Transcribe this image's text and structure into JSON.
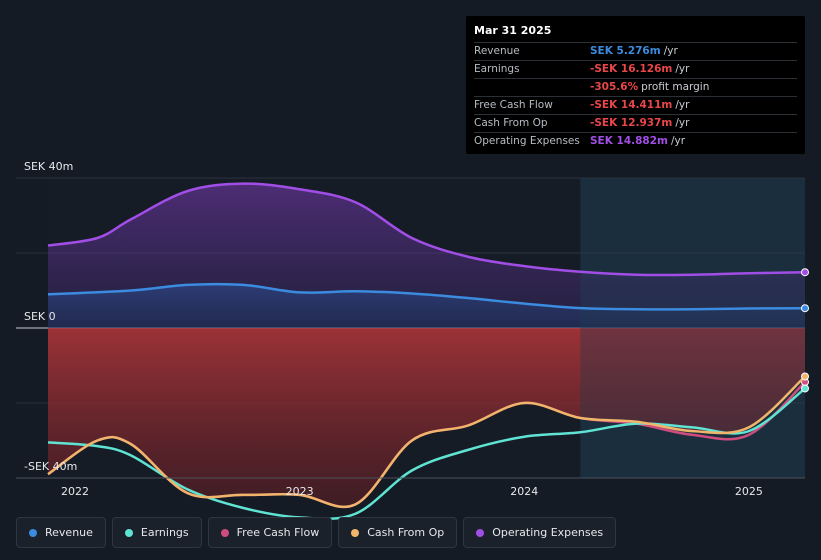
{
  "chart_data": {
    "type": "area",
    "x_ticks": [
      "2022",
      "2023",
      "2024",
      "2025"
    ],
    "y_ticks": [
      {
        "value": 40,
        "label": "SEK 40m"
      },
      {
        "value": 0,
        "label": "SEK 0"
      },
      {
        "value": -40,
        "label": "-SEK 40m"
      }
    ],
    "ylim": [
      -40,
      40
    ],
    "xlim": [
      2021.88,
      2025.25
    ],
    "forecast_start": 2024.25,
    "series": [
      {
        "name": "Revenue",
        "color": "#3b8be0",
        "points": [
          [
            2021.88,
            9.0
          ],
          [
            2022.25,
            10.0
          ],
          [
            2022.5,
            11.5
          ],
          [
            2022.75,
            11.5
          ],
          [
            2023.0,
            9.5
          ],
          [
            2023.25,
            9.8
          ],
          [
            2023.5,
            9.2
          ],
          [
            2023.75,
            8.0
          ],
          [
            2024.0,
            6.5
          ],
          [
            2024.25,
            5.3
          ],
          [
            2024.5,
            5.0
          ],
          [
            2024.75,
            5.0
          ],
          [
            2025.0,
            5.2
          ],
          [
            2025.25,
            5.276
          ]
        ]
      },
      {
        "name": "Earnings",
        "color": "#5fe3d2",
        "points": [
          [
            2021.88,
            -30.5
          ],
          [
            2022.1,
            -31.5
          ],
          [
            2022.25,
            -34.0
          ],
          [
            2022.5,
            -43.0
          ],
          [
            2022.75,
            -48.0
          ],
          [
            2023.0,
            -50.5
          ],
          [
            2023.25,
            -49.5
          ],
          [
            2023.5,
            -38.0
          ],
          [
            2023.75,
            -32.5
          ],
          [
            2024.0,
            -29.0
          ],
          [
            2024.25,
            -27.8
          ],
          [
            2024.5,
            -25.5
          ],
          [
            2024.75,
            -26.5
          ],
          [
            2025.0,
            -27.5
          ],
          [
            2025.25,
            -16.126
          ]
        ]
      },
      {
        "name": "Free Cash Flow",
        "color": "#cf4d7e",
        "points": [
          [
            2021.88,
            -39.0
          ],
          [
            2022.1,
            -30.0
          ],
          [
            2022.25,
            -31.0
          ],
          [
            2022.5,
            -44.0
          ],
          [
            2022.75,
            -44.5
          ],
          [
            2023.0,
            -44.5
          ],
          [
            2023.25,
            -47.0
          ],
          [
            2023.5,
            -30.0
          ],
          [
            2023.75,
            -26.0
          ],
          [
            2024.0,
            -20.0
          ],
          [
            2024.25,
            -24.0
          ],
          [
            2024.5,
            -25.5
          ],
          [
            2024.75,
            -28.5
          ],
          [
            2025.0,
            -28.5
          ],
          [
            2025.25,
            -14.411
          ]
        ]
      },
      {
        "name": "Cash From Op",
        "color": "#f0b56b",
        "points": [
          [
            2021.88,
            -39.0
          ],
          [
            2022.1,
            -30.0
          ],
          [
            2022.25,
            -31.0
          ],
          [
            2022.5,
            -44.0
          ],
          [
            2022.75,
            -44.5
          ],
          [
            2023.0,
            -44.5
          ],
          [
            2023.25,
            -47.0
          ],
          [
            2023.5,
            -30.0
          ],
          [
            2023.75,
            -26.0
          ],
          [
            2024.0,
            -20.0
          ],
          [
            2024.25,
            -24.0
          ],
          [
            2024.5,
            -25.0
          ],
          [
            2024.75,
            -27.5
          ],
          [
            2025.0,
            -26.5
          ],
          [
            2025.25,
            -12.937
          ]
        ]
      },
      {
        "name": "Operating Expenses",
        "color": "#a14ee6",
        "points": [
          [
            2021.88,
            22.0
          ],
          [
            2022.1,
            24.0
          ],
          [
            2022.25,
            29.0
          ],
          [
            2022.5,
            36.5
          ],
          [
            2022.75,
            38.5
          ],
          [
            2023.0,
            37.0
          ],
          [
            2023.25,
            33.5
          ],
          [
            2023.5,
            24.0
          ],
          [
            2023.75,
            19.0
          ],
          [
            2024.0,
            16.5
          ],
          [
            2024.25,
            15.0
          ],
          [
            2024.5,
            14.2
          ],
          [
            2024.75,
            14.2
          ],
          [
            2025.0,
            14.6
          ],
          [
            2025.25,
            14.882
          ]
        ]
      }
    ]
  },
  "tooltip": {
    "date": "Mar 31 2025",
    "rows": [
      {
        "label": "Revenue",
        "value": "SEK 5.276m",
        "unit": "/yr",
        "color": "#3b8be0"
      },
      {
        "label": "Earnings",
        "value": "-SEK 16.126m",
        "unit": "/yr",
        "color": "#e8474a"
      },
      {
        "label": "",
        "value": "-305.6%",
        "unit": "profit margin",
        "color": "#e8474a"
      },
      {
        "label": "Free Cash Flow",
        "value": "-SEK 14.411m",
        "unit": "/yr",
        "color": "#e8474a"
      },
      {
        "label": "Cash From Op",
        "value": "-SEK 12.937m",
        "unit": "/yr",
        "color": "#e8474a"
      },
      {
        "label": "Operating Expenses",
        "value": "SEK 14.882m",
        "unit": "/yr",
        "color": "#a14ee6"
      }
    ]
  },
  "legend": [
    {
      "label": "Revenue",
      "color": "#3b8be0"
    },
    {
      "label": "Earnings",
      "color": "#5fe3d2"
    },
    {
      "label": "Free Cash Flow",
      "color": "#cf4d7e"
    },
    {
      "label": "Cash From Op",
      "color": "#f0b56b"
    },
    {
      "label": "Operating Expenses",
      "color": "#a14ee6"
    }
  ]
}
